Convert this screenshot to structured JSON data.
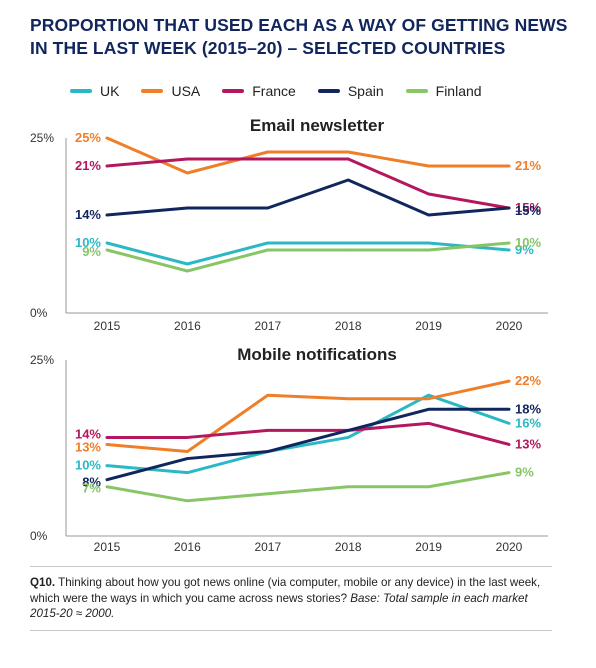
{
  "title_line1": "PROPORTION THAT USED EACH AS A WAY OF GETTING NEWS",
  "title_line2": "IN THE LAST WEEK (2015–20) – SELECTED COUNTRIES",
  "legend": [
    {
      "name": "UK",
      "color": "#2bb8c4"
    },
    {
      "name": "USA",
      "color": "#f07e28"
    },
    {
      "name": "France",
      "color": "#b5175e"
    },
    {
      "name": "Spain",
      "color": "#12265e"
    },
    {
      "name": "Finland",
      "color": "#88c567"
    }
  ],
  "chart_data": [
    {
      "type": "line",
      "title": "Email newsletter",
      "x": [
        "2015",
        "2016",
        "2017",
        "2018",
        "2019",
        "2020"
      ],
      "ylim": [
        0,
        25
      ],
      "yticks": [
        "0%",
        "25%"
      ],
      "series": [
        {
          "name": "UK",
          "color": "#2bb8c4",
          "values": [
            10,
            7,
            10,
            10,
            10,
            9
          ],
          "start_label": "10%",
          "end_label": "9%"
        },
        {
          "name": "USA",
          "color": "#f07e28",
          "values": [
            25,
            20,
            23,
            23,
            21,
            21
          ],
          "start_label": "25%",
          "end_label": "21%"
        },
        {
          "name": "France",
          "color": "#b5175e",
          "values": [
            21,
            22,
            22,
            22,
            17,
            15
          ],
          "start_label": "21%",
          "end_label": "15%"
        },
        {
          "name": "Spain",
          "color": "#12265e",
          "values": [
            14,
            15,
            15,
            19,
            14,
            15
          ],
          "start_label": "14%",
          "end_label": "15%"
        },
        {
          "name": "Finland",
          "color": "#88c567",
          "values": [
            9,
            6,
            9,
            9,
            9,
            10
          ],
          "start_label": "9%",
          "end_label": "10%"
        }
      ]
    },
    {
      "type": "line",
      "title": "Mobile notifications",
      "x": [
        "2015",
        "2016",
        "2017",
        "2018",
        "2019",
        "2020"
      ],
      "ylim": [
        0,
        25
      ],
      "yticks": [
        "0%",
        "25%"
      ],
      "series": [
        {
          "name": "UK",
          "color": "#2bb8c4",
          "values": [
            10,
            9,
            12,
            14,
            20,
            16
          ],
          "start_label": "10%",
          "end_label": "16%"
        },
        {
          "name": "USA",
          "color": "#f07e28",
          "values": [
            13,
            12,
            20,
            19.5,
            19.5,
            22
          ],
          "start_label": "13%",
          "end_label": "22%"
        },
        {
          "name": "France",
          "color": "#b5175e",
          "values": [
            14,
            14,
            15,
            15,
            16,
            13
          ],
          "start_label": "14%",
          "end_label": "13%"
        },
        {
          "name": "Spain",
          "color": "#12265e",
          "values": [
            8,
            11,
            12,
            15,
            18,
            18
          ],
          "start_label": "8%",
          "end_label": "18%"
        },
        {
          "name": "Finland",
          "color": "#88c567",
          "values": [
            7,
            5,
            6,
            7,
            7,
            9
          ],
          "start_label": "7%",
          "end_label": "9%"
        }
      ]
    }
  ],
  "footnote": {
    "q_label": "Q10.",
    "text": " Thinking about how you got news online (via computer, mobile or any device) in the last week, which were the ways in which you came across news stories? ",
    "base": "Base: Total sample in each market 2015-20 ≈ 2000."
  }
}
